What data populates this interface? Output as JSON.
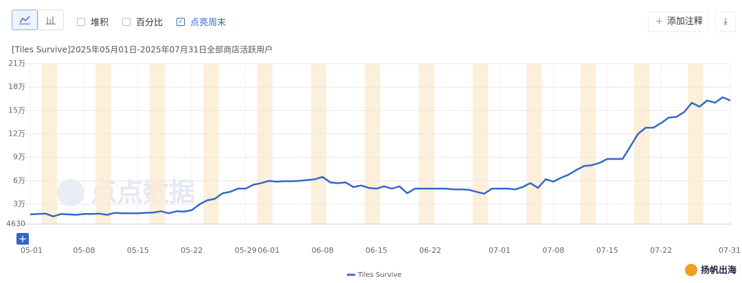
{
  "ui": {
    "stack_label": "堆积",
    "percent_label": "百分比",
    "weekend_label": "点亮周末",
    "annotate_button": "添加注释",
    "watermark": "点点数据",
    "logo": "扬帆出海"
  },
  "chart_data": {
    "type": "line",
    "title": "[Tiles Survive]2025年05月01日-2025年07月31日全部商店活跃用户",
    "categories": [
      "05-01",
      null,
      null,
      null,
      null,
      null,
      null,
      "05-08",
      null,
      null,
      null,
      null,
      null,
      null,
      "05-15",
      null,
      null,
      null,
      null,
      null,
      null,
      "05-22",
      null,
      null,
      null,
      null,
      null,
      null,
      "05-29",
      null,
      null,
      "06-01",
      null,
      null,
      null,
      null,
      null,
      null,
      "06-08",
      null,
      null,
      null,
      null,
      null,
      null,
      "06-15",
      null,
      null,
      null,
      null,
      null,
      null,
      "06-22",
      null,
      null,
      null,
      null,
      null,
      null,
      null,
      null,
      "07-01",
      null,
      null,
      null,
      null,
      null,
      null,
      "07-08",
      null,
      null,
      null,
      null,
      null,
      null,
      "07-15",
      null,
      null,
      null,
      null,
      null,
      null,
      "07-22",
      null,
      null,
      null,
      null,
      null,
      null,
      null,
      null,
      "07-31"
    ],
    "series": [
      {
        "name": "Tiles Survive",
        "color": "#3366cc",
        "values": [
          17000,
          17500,
          18000,
          14500,
          17500,
          17000,
          16500,
          17500,
          17500,
          18000,
          16500,
          19000,
          18500,
          18500,
          18500,
          19000,
          19500,
          21000,
          18500,
          21000,
          20500,
          22500,
          30000,
          35000,
          37000,
          44000,
          46000,
          50000,
          50000,
          55000,
          57000,
          60000,
          59000,
          59500,
          59500,
          60000,
          61000,
          62000,
          65000,
          58000,
          57000,
          58000,
          52000,
          54000,
          51000,
          50000,
          53000,
          50000,
          53000,
          44000,
          50000,
          50000,
          50000,
          50000,
          50000,
          49000,
          49000,
          48500,
          46000,
          43500,
          50000,
          50000,
          50000,
          49000,
          52000,
          57000,
          51000,
          62000,
          59000,
          64000,
          68000,
          74000,
          79000,
          80000,
          83000,
          88000,
          88000,
          88000,
          104000,
          120000,
          128000,
          128000,
          134000,
          141000,
          142000,
          148000,
          160000,
          155000,
          163000,
          160000,
          167000,
          163000
        ]
      }
    ],
    "ylim": [
      4630,
      210000
    ],
    "yticks": [
      4630,
      {
        "value": 30000,
        "label": "3万"
      },
      {
        "value": 60000,
        "label": "6万"
      },
      {
        "value": 90000,
        "label": "9万"
      },
      {
        "value": 120000,
        "label": "12万"
      },
      {
        "value": 150000,
        "label": "15万"
      },
      {
        "value": 180000,
        "label": "18万"
      },
      {
        "value": 210000,
        "label": "21万"
      }
    ],
    "grid": true,
    "highlight_weekends": true,
    "weekend_indices": [
      2,
      3,
      9,
      10,
      16,
      17,
      23,
      24,
      30,
      31,
      37,
      38,
      44,
      45,
      51,
      52,
      58,
      59,
      65,
      66,
      72,
      73,
      79,
      80,
      86,
      87
    ],
    "legend": "bottom"
  }
}
